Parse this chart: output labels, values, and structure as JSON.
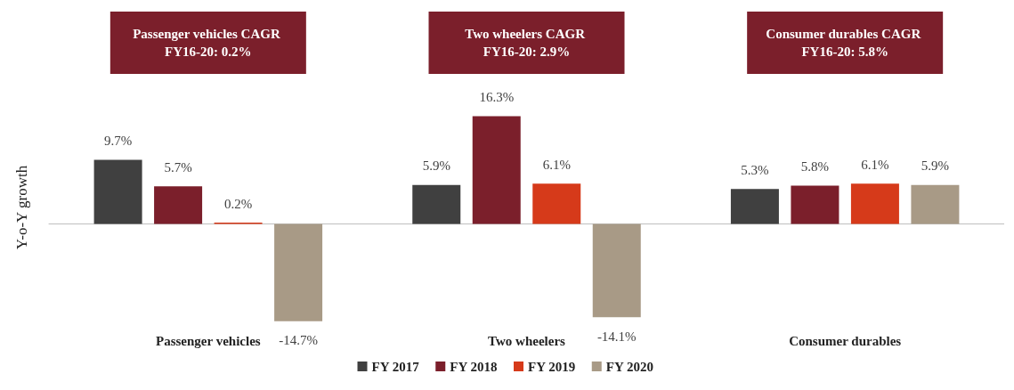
{
  "chart_data": {
    "type": "bar",
    "ylabel": "Y-o-Y growth",
    "categories": [
      "Passenger vehicles",
      "Two wheelers",
      "Consumer durables"
    ],
    "series": [
      {
        "name": "FY 2017",
        "color": "#404040",
        "values": [
          9.7,
          5.9,
          5.3
        ],
        "value_labels": [
          "9.7%",
          "5.9%",
          "5.3%"
        ]
      },
      {
        "name": "FY 2018",
        "color": "#7b1f2b",
        "values": [
          5.7,
          16.3,
          5.8
        ],
        "value_labels": [
          "5.7%",
          "16.3%",
          "5.8%"
        ]
      },
      {
        "name": "FY 2019",
        "color": "#d63a1a",
        "values": [
          0.2,
          6.1,
          6.1
        ],
        "value_labels": [
          "0.2%",
          "6.1%",
          "6.1%"
        ]
      },
      {
        "name": "FY 2020",
        "color": "#a89a86",
        "values": [
          -14.7,
          -14.1,
          5.9
        ],
        "value_labels": [
          "-14.7%",
          "-14.1%",
          "5.9%"
        ]
      }
    ],
    "annotations": [
      "Passenger vehicles CAGR FY16-20: 0.2%",
      "Two wheelers CAGR FY16-20: 2.9%",
      "Consumer durables CAGR FY16-20: 5.8%"
    ],
    "legend": "bottom",
    "grid": false
  }
}
